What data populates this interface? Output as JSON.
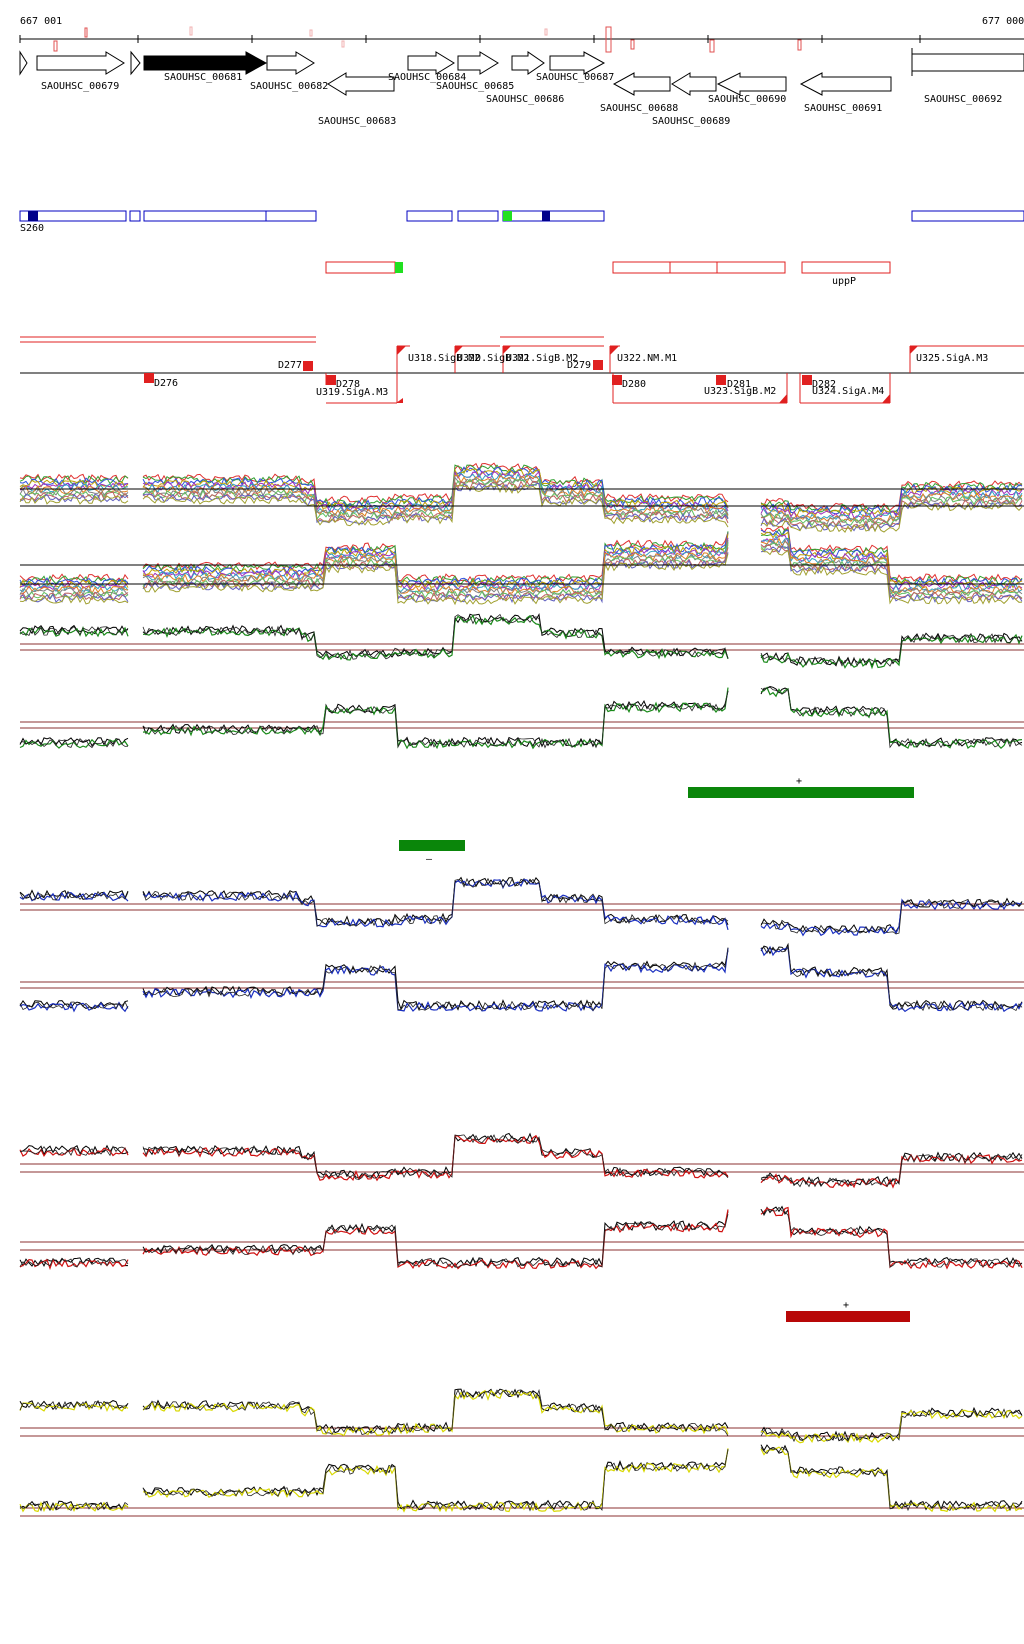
{
  "ruler": {
    "start_label": "667 001",
    "end_label": "677 000"
  },
  "genes": [
    {
      "id": "g0",
      "label": "",
      "strand": "+",
      "filled": false
    },
    {
      "id": "g1",
      "label": "SAOUHSC_00679",
      "strand": "+",
      "filled": false
    },
    {
      "id": "g1b",
      "label": "",
      "strand": "+",
      "filled": false
    },
    {
      "id": "g2",
      "label": "SAOUHSC_00681",
      "strand": "+",
      "filled": true
    },
    {
      "id": "g3",
      "label": "SAOUHSC_00682",
      "strand": "+",
      "filled": false
    },
    {
      "id": "g4",
      "label": "SAOUHSC_00683",
      "strand": "-",
      "filled": false
    },
    {
      "id": "g5",
      "label": "SAOUHSC_00684",
      "strand": "+",
      "filled": false
    },
    {
      "id": "g6",
      "label": "SAOUHSC_00685",
      "strand": "+",
      "filled": false
    },
    {
      "id": "g7",
      "label": "SAOUHSC_00686",
      "strand": "+",
      "filled": false
    },
    {
      "id": "g8",
      "label": "SAOUHSC_00687",
      "strand": "+",
      "filled": false
    },
    {
      "id": "g9",
      "label": "SAOUHSC_00688",
      "strand": "-",
      "filled": false
    },
    {
      "id": "g10",
      "label": "SAOUHSC_00689",
      "strand": "-",
      "filled": false
    },
    {
      "id": "g11",
      "label": "SAOUHSC_00690",
      "strand": "-",
      "filled": false
    },
    {
      "id": "g12",
      "label": "SAOUHSC_00691",
      "strand": "-",
      "filled": false
    },
    {
      "id": "g13",
      "label": "SAOUHSC_00692",
      "strand": "+",
      "filled": false
    }
  ],
  "blue_features": [
    {
      "label": "S260"
    }
  ],
  "red_features": [
    {
      "label": "uppP"
    }
  ],
  "segments_down": [
    "D276",
    "D277",
    "D278",
    "D279",
    "D280",
    "D281",
    "D282"
  ],
  "segments_up": [
    "U318.SigB.M2",
    "U320.SigB.M2",
    "U321.SigB.M2",
    "U322.NM.M1",
    "U325.SigA.M3"
  ],
  "segments_minus": [
    "U319.SigA.M3",
    "U323.SigB.M2",
    "U324.SigA.M4"
  ],
  "marks": {
    "plus": "+",
    "minus": "–"
  },
  "colors": {
    "gene_filled": "#000000",
    "blue_feature": "#0000c0",
    "red_feature": "#e02020",
    "green_panel": "#1a8a1a",
    "blue_panel": "#1a2fc0",
    "red_panel": "#d01010",
    "yellow_panel": "#d8d800",
    "green_bar": "#0a860a",
    "red_bar": "#b80808",
    "bright_green": "#20e020"
  }
}
